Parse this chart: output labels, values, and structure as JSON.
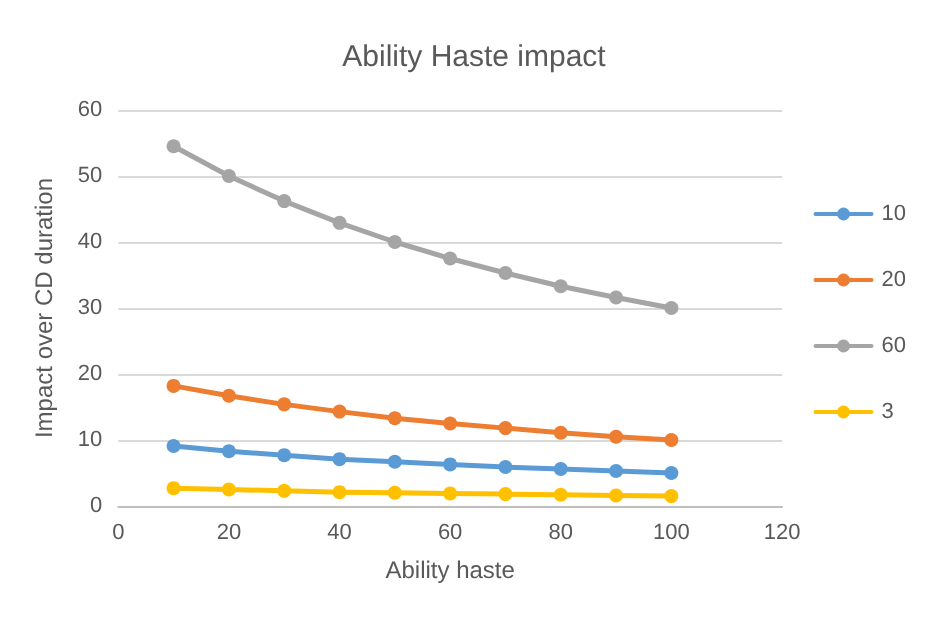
{
  "chart_data": {
    "type": "line",
    "title": "Ability Haste impact",
    "xlabel": "Ability haste",
    "ylabel": "Impact over CD duration",
    "x": [
      10,
      20,
      30,
      40,
      50,
      60,
      70,
      80,
      90,
      100
    ],
    "series": [
      {
        "name": "10",
        "color": "#5b9bd5",
        "values": [
          9.1,
          8.3,
          7.7,
          7.1,
          6.7,
          6.3,
          5.9,
          5.6,
          5.3,
          5
        ]
      },
      {
        "name": "20",
        "color": "#ed7d31",
        "values": [
          18.2,
          16.7,
          15.4,
          14.3,
          13.3,
          12.5,
          11.8,
          11.1,
          10.5,
          10
        ]
      },
      {
        "name": "60",
        "color": "#a5a5a5",
        "values": [
          54.5,
          50,
          46.2,
          42.9,
          40,
          37.5,
          35.3,
          33.3,
          31.6,
          30
        ]
      },
      {
        "name": "3",
        "color": "#ffc000",
        "values": [
          2.7,
          2.5,
          2.3,
          2.1,
          2,
          1.9,
          1.8,
          1.7,
          1.6,
          1.5
        ]
      }
    ],
    "xlim": [
      0,
      120
    ],
    "xticks": [
      0,
      20,
      40,
      60,
      80,
      100,
      120
    ],
    "ylim": [
      0,
      60
    ],
    "yticks": [
      0,
      10,
      20,
      30,
      40,
      50,
      60
    ],
    "grid": "y",
    "legend": "right",
    "marker": "circle",
    "line_style": "solid"
  }
}
